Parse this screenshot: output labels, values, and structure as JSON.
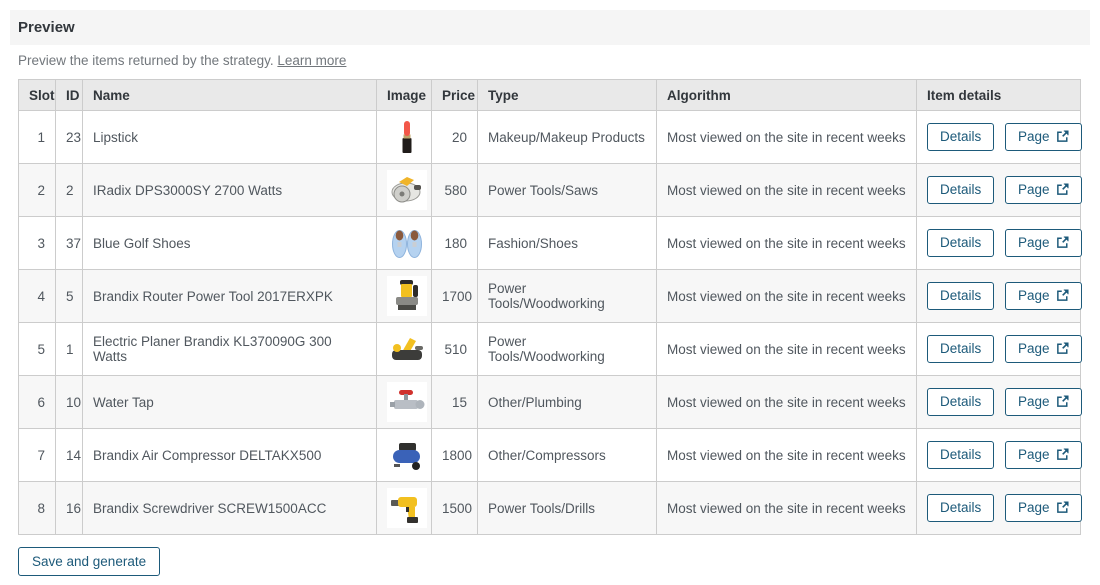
{
  "panel": {
    "title": "Preview"
  },
  "subtitle": {
    "text": "Preview the items returned by the strategy.",
    "link_label": "Learn more"
  },
  "table": {
    "columns": [
      "Slot",
      "ID",
      "Name",
      "Image",
      "Price",
      "Type",
      "Algorithm",
      "Item details"
    ],
    "actions": {
      "details_label": "Details",
      "page_label": "Page"
    },
    "rows": [
      {
        "slot": "1",
        "id": "23",
        "name": "Lipstick",
        "image": {
          "icon": "lipstick-icon",
          "primary": "#f25749",
          "secondary": "#201c1a"
        },
        "price": "20",
        "type": "Makeup/Makeup Products",
        "algorithm": "Most viewed on the site in recent weeks"
      },
      {
        "slot": "2",
        "id": "2",
        "name": "IRadix DPS3000SY 2700 Watts",
        "image": {
          "icon": "circular-saw-icon",
          "primary": "#f0b429",
          "secondary": "#8e8e8a"
        },
        "price": "580",
        "type": "Power Tools/Saws",
        "algorithm": "Most viewed on the site in recent weeks"
      },
      {
        "slot": "3",
        "id": "37",
        "name": "Blue Golf Shoes",
        "image": {
          "icon": "shoes-icon",
          "primary": "#b5d2f0",
          "secondary": "#8a5a3e"
        },
        "price": "180",
        "type": "Fashion/Shoes",
        "algorithm": "Most viewed on the site in recent weeks"
      },
      {
        "slot": "4",
        "id": "5",
        "name": "Brandix Router Power Tool 2017ERXPK",
        "image": {
          "icon": "router-icon",
          "primary": "#f2c020",
          "secondary": "#2e2c2a"
        },
        "price": "1700",
        "type": "Power Tools/Woodworking",
        "algorithm": "Most viewed on the site in recent weeks"
      },
      {
        "slot": "5",
        "id": "1",
        "name": "Electric Planer Brandix KL370090G 300 Watts",
        "image": {
          "icon": "planer-icon",
          "primary": "#f2c020",
          "secondary": "#3c3c3a"
        },
        "price": "510",
        "type": "Power Tools/Woodworking",
        "algorithm": "Most viewed on the site in recent weeks"
      },
      {
        "slot": "6",
        "id": "10",
        "name": "Water Tap",
        "image": {
          "icon": "water-tap-icon",
          "primary": "#d0312d",
          "secondary": "#b9bec5"
        },
        "price": "15",
        "type": "Other/Plumbing",
        "algorithm": "Most viewed on the site in recent weeks"
      },
      {
        "slot": "7",
        "id": "14",
        "name": "Brandix Air Compressor DELTAKX500",
        "image": {
          "icon": "compressor-icon",
          "primary": "#3a62b8",
          "secondary": "#30302e"
        },
        "price": "1800",
        "type": "Other/Compressors",
        "algorithm": "Most viewed on the site in recent weeks"
      },
      {
        "slot": "8",
        "id": "16",
        "name": "Brandix Screwdriver SCREW1500ACC",
        "image": {
          "icon": "drill-icon",
          "primary": "#f2c020",
          "secondary": "#33312e"
        },
        "price": "1500",
        "type": "Power Tools/Drills",
        "algorithm": "Most viewed on the site in recent weeks"
      }
    ]
  },
  "footer": {
    "save_button_label": "Save and generate"
  },
  "colors": {
    "accent": "#1d5a7a",
    "header_bg": "#f5f5f5",
    "table_header_bg": "#e9e9e9",
    "zebra_bg": "#f7f7f7",
    "border": "#cccccc"
  }
}
